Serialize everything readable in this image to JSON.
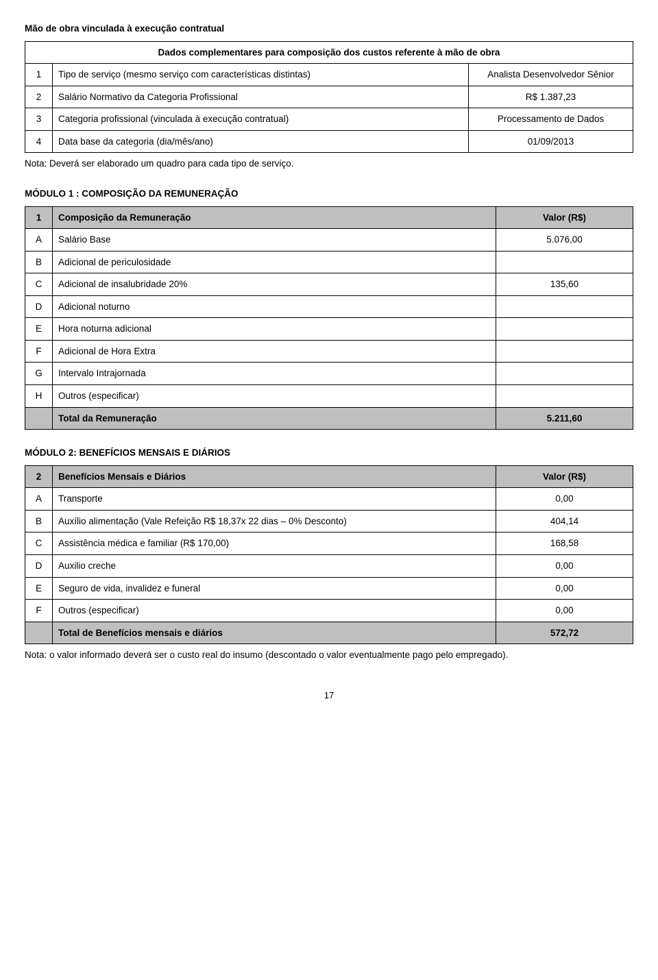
{
  "title_labor": "Mão de obra vinculada à execução contratual",
  "caption_complementary": "Dados complementares para composição dos custos referente à mão de obra",
  "rows_labor": [
    {
      "n": "1",
      "label": "Tipo de serviço (mesmo serviço com características distintas)",
      "value": "Analista Desenvolvedor Sênior"
    },
    {
      "n": "2",
      "label": "Salário Normativo da Categoria Profissional",
      "value": "R$ 1.387,23"
    },
    {
      "n": "3",
      "label": "Categoria profissional (vinculada à execução contratual)",
      "value": "Processamento de Dados"
    },
    {
      "n": "4",
      "label": "Data base da categoria (dia/mês/ano)",
      "value": "01/09/2013"
    }
  ],
  "note_labor": "Nota: Deverá ser elaborado um quadro para cada tipo de serviço.",
  "title_mod1": "MÓDULO 1 : COMPOSIÇÃO DA REMUNERAÇÃO",
  "mod1_header_n": "1",
  "mod1_header_label": "Composição da Remuneração",
  "mod1_header_value": "Valor (R$)",
  "mod1_rows": [
    {
      "n": "A",
      "label": "Salário Base",
      "value": "5.076,00"
    },
    {
      "n": "B",
      "label": "Adicional de periculosidade",
      "value": ""
    },
    {
      "n": "C",
      "label": "Adicional de insalubridade 20%",
      "value": "135,60"
    },
    {
      "n": "D",
      "label": "Adicional noturno",
      "value": ""
    },
    {
      "n": "E",
      "label": "Hora noturna adicional",
      "value": ""
    },
    {
      "n": "F",
      "label": "Adicional de Hora Extra",
      "value": ""
    },
    {
      "n": "G",
      "label": "Intervalo Intrajornada",
      "value": ""
    },
    {
      "n": "H",
      "label": "Outros (especificar)",
      "value": ""
    }
  ],
  "mod1_total_label": "Total da Remuneração",
  "mod1_total_value": "5.211,60",
  "title_mod2": "MÓDULO 2: BENEFÍCIOS MENSAIS E DIÁRIOS",
  "mod2_header_n": "2",
  "mod2_header_label": "Benefícios Mensais e Diários",
  "mod2_header_value": "Valor (R$)",
  "mod2_rows": [
    {
      "n": "A",
      "label": "Transporte",
      "value": "0,00"
    },
    {
      "n": "B",
      "label": "Auxílio alimentação (Vale Refeição R$ 18,37x 22 dias – 0% Desconto)",
      "value": "404,14"
    },
    {
      "n": "C",
      "label": "Assistência médica e familiar (R$ 170,00)",
      "value": "168,58"
    },
    {
      "n": "D",
      "label": "Auxilio creche",
      "value": "0,00"
    },
    {
      "n": "E",
      "label": "Seguro de vida, invalidez e funeral",
      "value": "0,00"
    },
    {
      "n": "F",
      "label": "Outros (especificar)",
      "value": "0,00"
    }
  ],
  "mod2_total_label": "Total de Benefícios mensais e diários",
  "mod2_total_value": "572,72",
  "note_mod2": "Nota: o valor informado deverá ser o custo real do insumo (descontado o valor eventualmente pago pelo empregado).",
  "page_number": "17"
}
